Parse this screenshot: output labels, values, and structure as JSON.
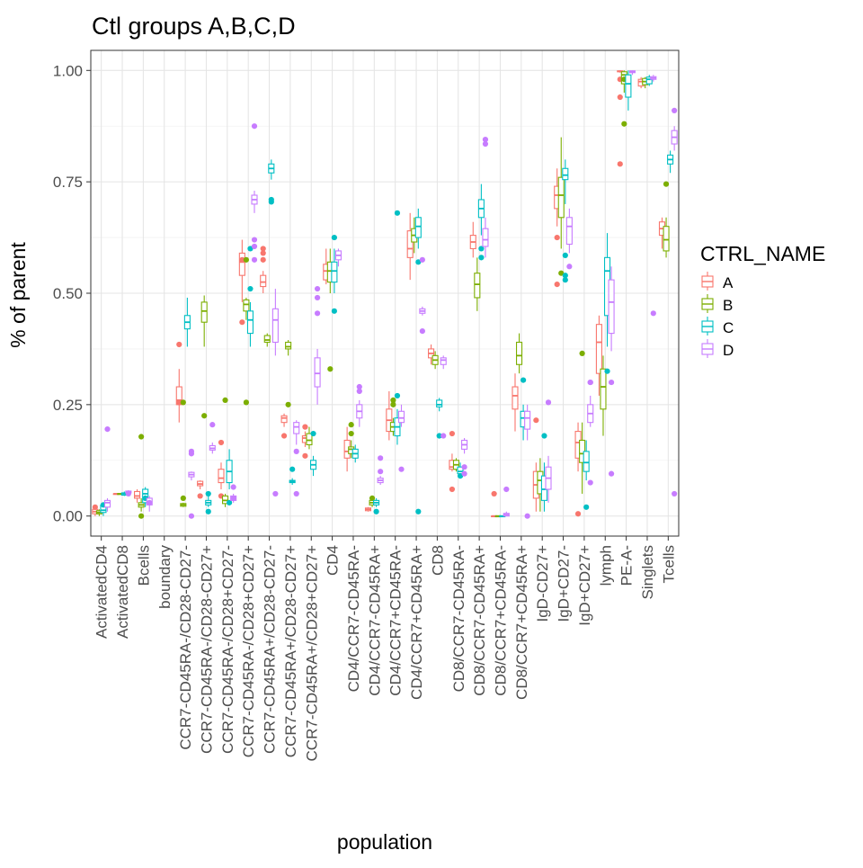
{
  "chart_data": {
    "type": "boxplot",
    "title": "Ctl groups A,B,C,D",
    "xlabel": "population",
    "ylabel": "% of parent",
    "ylim": [
      -0.045,
      1.045
    ],
    "yticks": [
      0.0,
      0.25,
      0.5,
      0.75,
      1.0
    ],
    "ytick_labels": [
      "0.00",
      "0.25",
      "0.50",
      "0.75",
      "1.00"
    ],
    "grid": true,
    "legend": {
      "title": "CTRL_NAME",
      "placement": "right"
    },
    "series": [
      {
        "name": "A",
        "color": "#F8766D"
      },
      {
        "name": "B",
        "color": "#7CAE00"
      },
      {
        "name": "C",
        "color": "#00BFC4"
      },
      {
        "name": "D",
        "color": "#C77CFF"
      }
    ],
    "categories": [
      "ActivatedCD4",
      "ActivatedCD8",
      "Bcells",
      "boundary",
      "CCR7-CD45RA-/CD28-CD27-",
      "CCR7-CD45RA-/CD28-CD27+",
      "CCR7-CD45RA-/CD28+CD27-",
      "CCR7-CD45RA-/CD28+CD27+",
      "CCR7-CD45RA+/CD28-CD27-",
      "CCR7-CD45RA+/CD28-CD27+",
      "CCR7-CD45RA+/CD28+CD27+",
      "CD4",
      "CD4/CCR7-CD45RA-",
      "CD4/CCR7-CD45RA+",
      "CD4/CCR7+CD45RA-",
      "CD4/CCR7+CD45RA+",
      "CD8",
      "CD8/CCR7-CD45RA-",
      "CD8/CCR7-CD45RA+",
      "CD8/CCR7+CD45RA-",
      "CD8/CCR7+CD45RA+",
      "IgD-CD27+",
      "IgD+CD27-",
      "IgD+CD27+",
      "lymph",
      "PE-A-",
      "Singlets",
      "Tcells"
    ],
    "boxes": [
      [
        [
          0.0,
          0.005,
          0.01,
          0.015,
          0.02,
          [
            0.02
          ]
        ],
        [
          0.0,
          0.005,
          0.008,
          0.012,
          0.015,
          []
        ],
        [
          0.0,
          0.008,
          0.013,
          0.025,
          0.03,
          [
            0.025
          ]
        ],
        [
          0.01,
          0.02,
          0.03,
          0.035,
          0.04,
          [
            0.195
          ]
        ]
      ],
      [
        [
          0.05,
          0.05,
          0.05,
          0.05,
          0.05,
          []
        ],
        [
          0.05,
          0.05,
          0.05,
          0.05,
          0.05,
          []
        ],
        [
          0.045,
          0.047,
          0.05,
          0.052,
          0.055,
          []
        ],
        [
          0.05,
          0.052,
          0.055,
          0.056,
          0.058,
          [
            0.05
          ]
        ]
      ],
      [
        [
          0.03,
          0.04,
          0.045,
          0.055,
          0.06,
          []
        ],
        [
          0.01,
          0.02,
          0.025,
          0.03,
          0.04,
          [
            0.178,
            0.0
          ]
        ],
        [
          0.02,
          0.03,
          0.05,
          0.06,
          0.065,
          [
            0.04
          ]
        ],
        [
          0.01,
          0.025,
          0.03,
          0.04,
          0.045,
          [
            0.03
          ]
        ]
      ],
      null,
      [
        [
          0.21,
          0.25,
          0.26,
          0.29,
          0.33,
          [
            0.385,
            0.255
          ]
        ],
        [
          0.02,
          0.022,
          0.025,
          0.028,
          0.03,
          [
            0.04,
            0.255
          ]
        ],
        [
          0.38,
          0.42,
          0.435,
          0.45,
          0.49,
          []
        ],
        [
          0.08,
          0.088,
          0.093,
          0.098,
          0.1,
          [
            0.14,
            0.145,
            0.0
          ]
        ]
      ],
      [
        [
          0.06,
          0.068,
          0.072,
          0.078,
          0.08,
          [
            0.045
          ]
        ],
        [
          0.38,
          0.435,
          0.46,
          0.48,
          0.495,
          [
            0.225
          ]
        ],
        [
          0.02,
          0.025,
          0.03,
          0.035,
          0.045,
          [
            0.01,
            0.05
          ]
        ],
        [
          0.14,
          0.148,
          0.152,
          0.158,
          0.165,
          [
            0.205
          ]
        ]
      ],
      [
        [
          0.06,
          0.075,
          0.085,
          0.105,
          0.12,
          [
            0.165,
            0.045
          ]
        ],
        [
          0.02,
          0.028,
          0.035,
          0.045,
          0.05,
          [
            0.26
          ]
        ],
        [
          0.06,
          0.075,
          0.1,
          0.125,
          0.15,
          [
            0.03
          ]
        ],
        [
          0.03,
          0.035,
          0.04,
          0.045,
          0.05,
          [
            0.065,
            0.04
          ]
        ]
      ],
      [
        [
          0.48,
          0.54,
          0.57,
          0.59,
          0.62,
          [
            0.435,
            0.575
          ]
        ],
        [
          0.44,
          0.46,
          0.475,
          0.485,
          0.49,
          [
            0.575,
            0.255
          ]
        ],
        [
          0.38,
          0.41,
          0.44,
          0.46,
          0.48,
          [
            0.6,
            0.51
          ]
        ],
        [
          0.68,
          0.7,
          0.71,
          0.72,
          0.73,
          [
            0.875,
            0.62,
            0.605,
            0.575
          ]
        ]
      ],
      [
        [
          0.5,
          0.515,
          0.525,
          0.54,
          0.55,
          [
            0.6,
            0.59,
            0.575
          ]
        ],
        [
          0.38,
          0.39,
          0.395,
          0.405,
          0.41,
          []
        ],
        [
          0.755,
          0.77,
          0.78,
          0.79,
          0.8,
          [
            0.71,
            0.705
          ]
        ],
        [
          0.36,
          0.39,
          0.44,
          0.465,
          0.51,
          [
            0.05
          ]
        ]
      ],
      [
        [
          0.2,
          0.21,
          0.22,
          0.225,
          0.23,
          [
            0.18
          ]
        ],
        [
          0.36,
          0.375,
          0.38,
          0.39,
          0.395,
          [
            0.25
          ]
        ],
        [
          0.07,
          0.075,
          0.078,
          0.08,
          0.085,
          [
            0.105
          ]
        ],
        [
          0.16,
          0.185,
          0.2,
          0.21,
          0.215,
          [
            0.145,
            0.05
          ]
        ]
      ],
      [
        [
          0.155,
          0.165,
          0.175,
          0.18,
          0.19,
          [
            0.135,
            0.2
          ]
        ],
        [
          0.15,
          0.16,
          0.17,
          0.185,
          0.2,
          []
        ],
        [
          0.09,
          0.105,
          0.115,
          0.125,
          0.135,
          [
            0.185
          ]
        ],
        [
          0.25,
          0.29,
          0.32,
          0.355,
          0.375,
          [
            0.51,
            0.49,
            0.455
          ]
        ]
      ],
      [
        [
          0.52,
          0.53,
          0.55,
          0.565,
          0.6,
          []
        ],
        [
          0.5,
          0.525,
          0.55,
          0.57,
          0.6,
          [
            0.33
          ]
        ],
        [
          0.5,
          0.525,
          0.55,
          0.57,
          0.6,
          [
            0.625,
            0.46
          ]
        ],
        [
          0.56,
          0.575,
          0.585,
          0.595,
          0.6,
          []
        ]
      ],
      [
        [
          0.1,
          0.13,
          0.145,
          0.17,
          0.2,
          []
        ],
        [
          0.13,
          0.14,
          0.15,
          0.155,
          0.17,
          [
            0.205,
            0.185
          ]
        ],
        [
          0.12,
          0.13,
          0.14,
          0.15,
          0.16,
          []
        ],
        [
          0.2,
          0.22,
          0.235,
          0.25,
          0.26,
          [
            0.29,
            0.28
          ]
        ]
      ],
      [
        [
          0.01,
          0.012,
          0.015,
          0.018,
          0.02,
          []
        ],
        [
          0.02,
          0.025,
          0.03,
          0.035,
          0.04,
          [
            0.04
          ]
        ],
        [
          0.02,
          0.025,
          0.03,
          0.035,
          0.04,
          [
            0.01
          ]
        ],
        [
          0.07,
          0.075,
          0.08,
          0.085,
          0.09,
          [
            0.13,
            0.1
          ]
        ]
      ],
      [
        [
          0.17,
          0.19,
          0.215,
          0.24,
          0.28,
          []
        ],
        [
          0.18,
          0.19,
          0.2,
          0.21,
          0.22,
          [
            0.26,
            0.25
          ]
        ],
        [
          0.16,
          0.18,
          0.2,
          0.22,
          0.24,
          [
            0.68,
            0.27
          ]
        ],
        [
          0.2,
          0.21,
          0.22,
          0.235,
          0.25,
          [
            0.105
          ]
        ]
      ],
      [
        [
          0.53,
          0.58,
          0.6,
          0.64,
          0.68,
          []
        ],
        [
          0.59,
          0.615,
          0.63,
          0.645,
          0.67,
          []
        ],
        [
          0.6,
          0.625,
          0.65,
          0.67,
          0.69,
          [
            0.57,
            0.01
          ]
        ],
        [
          0.45,
          0.455,
          0.46,
          0.465,
          0.47,
          [
            0.575,
            0.415
          ]
        ]
      ],
      [
        [
          0.34,
          0.355,
          0.365,
          0.375,
          0.385,
          []
        ],
        [
          0.33,
          0.34,
          0.35,
          0.36,
          0.37,
          []
        ],
        [
          0.235,
          0.245,
          0.25,
          0.26,
          0.265,
          [
            0.18
          ]
        ],
        [
          0.33,
          0.34,
          0.35,
          0.355,
          0.36,
          [
            0.18
          ]
        ]
      ],
      [
        [
          0.1,
          0.105,
          0.11,
          0.125,
          0.14,
          [
            0.185,
            0.06
          ]
        ],
        [
          0.1,
          0.105,
          0.115,
          0.125,
          0.13,
          []
        ],
        [
          0.085,
          0.095,
          0.1,
          0.11,
          0.12,
          [
            0.09
          ]
        ],
        [
          0.14,
          0.15,
          0.16,
          0.17,
          0.175,
          [
            0.11,
            0.095
          ]
        ]
      ],
      [
        [
          0.58,
          0.6,
          0.615,
          0.63,
          0.66,
          []
        ],
        [
          0.46,
          0.49,
          0.52,
          0.545,
          0.58,
          []
        ],
        [
          0.63,
          0.67,
          0.69,
          0.71,
          0.745,
          [
            0.6,
            0.58
          ]
        ],
        [
          0.58,
          0.605,
          0.62,
          0.645,
          0.67,
          [
            0.845,
            0.835
          ]
        ]
      ],
      [
        [
          0.0,
          0.0,
          0.0,
          0.0,
          0.0,
          [
            0.05
          ]
        ],
        [
          0.0,
          0.0,
          0.0,
          0.0,
          0.0,
          []
        ],
        [
          0.0,
          0.0,
          0.0,
          0.0,
          0.0,
          []
        ],
        [
          0.0,
          0.0,
          0.003,
          0.006,
          0.01,
          [
            0.06
          ]
        ]
      ],
      [
        [
          0.19,
          0.24,
          0.27,
          0.29,
          0.32,
          []
        ],
        [
          0.32,
          0.34,
          0.36,
          0.39,
          0.41,
          []
        ],
        [
          0.17,
          0.2,
          0.22,
          0.235,
          0.25,
          [
            0.305
          ]
        ],
        [
          0.17,
          0.195,
          0.22,
          0.235,
          0.25,
          [
            0.0
          ]
        ]
      ],
      [
        [
          0.01,
          0.04,
          0.07,
          0.1,
          0.12,
          [
            0.215
          ]
        ],
        [
          0.01,
          0.05,
          0.08,
          0.1,
          0.13,
          []
        ],
        [
          0.01,
          0.035,
          0.06,
          0.09,
          0.12,
          [
            0.18
          ]
        ],
        [
          0.03,
          0.06,
          0.085,
          0.11,
          0.135,
          [
            0.255
          ]
        ]
      ],
      [
        [
          0.65,
          0.69,
          0.72,
          0.74,
          0.78,
          [
            0.625,
            0.52
          ]
        ],
        [
          0.6,
          0.67,
          0.72,
          0.76,
          0.85,
          [
            0.545
          ]
        ],
        [
          0.7,
          0.755,
          0.765,
          0.78,
          0.8,
          [
            0.585,
            0.54,
            0.53
          ]
        ],
        [
          0.59,
          0.61,
          0.65,
          0.67,
          0.69,
          [
            0.56
          ]
        ]
      ],
      [
        [
          0.1,
          0.13,
          0.165,
          0.19,
          0.21,
          [
            0.005
          ]
        ],
        [
          0.05,
          0.12,
          0.14,
          0.17,
          0.21,
          [
            0.365
          ]
        ],
        [
          0.08,
          0.1,
          0.12,
          0.145,
          0.17,
          [
            0.02
          ]
        ],
        [
          0.2,
          0.21,
          0.23,
          0.25,
          0.27,
          [
            0.3,
            0.3,
            0.075
          ]
        ]
      ],
      [
        [
          0.27,
          0.32,
          0.39,
          0.43,
          0.45,
          []
        ],
        [
          0.18,
          0.24,
          0.29,
          0.33,
          0.36,
          []
        ],
        [
          0.38,
          0.45,
          0.55,
          0.58,
          0.635,
          [
            0.325
          ]
        ],
        [
          0.37,
          0.41,
          0.48,
          0.53,
          0.56,
          [
            0.3,
            0.095
          ]
        ]
      ],
      [
        [
          0.995,
          0.997,
          0.998,
          0.999,
          1.0,
          [
            0.98,
            0.94,
            0.79
          ]
        ],
        [
          0.95,
          0.97,
          0.99,
          0.997,
          1.0,
          [
            0.98,
            0.88
          ]
        ],
        [
          0.91,
          0.94,
          0.97,
          0.99,
          1.0,
          []
        ],
        [
          0.99,
          0.995,
          0.997,
          0.999,
          1.0,
          []
        ]
      ],
      [
        [
          0.96,
          0.965,
          0.975,
          0.98,
          0.985,
          []
        ],
        [
          0.96,
          0.968,
          0.975,
          0.982,
          0.985,
          []
        ],
        [
          0.965,
          0.97,
          0.98,
          0.985,
          0.99,
          []
        ],
        [
          0.975,
          0.98,
          0.983,
          0.986,
          0.99,
          [
            0.455
          ]
        ]
      ],
      [
        [
          0.6,
          0.63,
          0.645,
          0.66,
          0.67,
          []
        ],
        [
          0.58,
          0.595,
          0.62,
          0.65,
          0.67,
          [
            0.745
          ]
        ],
        [
          0.77,
          0.79,
          0.8,
          0.81,
          0.82,
          []
        ],
        [
          0.82,
          0.835,
          0.85,
          0.865,
          0.875,
          [
            0.91,
            0.05
          ]
        ]
      ]
    ]
  }
}
